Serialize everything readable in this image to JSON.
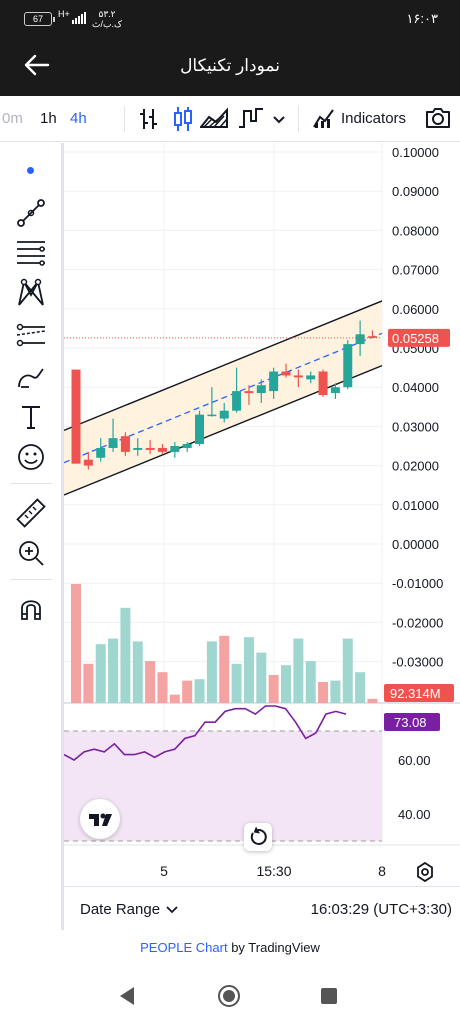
{
  "status": {
    "battery": "67",
    "signal_type": "H+",
    "network_top": "۵۳.۲",
    "network_bottom": "ک.ب/ث",
    "clock": "۱۶:۰۳"
  },
  "header": {
    "title": "نمودار تکنیکال"
  },
  "toolbar": {
    "intervals": [
      "0m",
      "1h",
      "4h"
    ],
    "active_interval": "4h",
    "indicators_label": "Indicators"
  },
  "chart_data": {
    "type": "candlestick",
    "title": "",
    "price_ticks": [
      "0.10000",
      "0.09000",
      "0.08000",
      "0.07000",
      "0.06000",
      "0.05000",
      "0.04000",
      "0.03000",
      "0.02000",
      "0.01000",
      "0.00000",
      "-0.01000",
      "-0.02000",
      "-0.03000"
    ],
    "price_range": [
      -0.035,
      0.1
    ],
    "current_price": "0.05258",
    "volume_label": "92.314M",
    "rsi_label": "73.08",
    "rsi_ticks": [
      "60.00",
      "40.00"
    ],
    "time_ticks": [
      "5",
      "15:30",
      "8"
    ],
    "candles": [
      {
        "o": 0.0445,
        "h": 0.0445,
        "l": 0.0205,
        "c": 0.0205
      },
      {
        "o": 0.0215,
        "h": 0.0235,
        "l": 0.019,
        "c": 0.02
      },
      {
        "o": 0.022,
        "h": 0.027,
        "l": 0.021,
        "c": 0.0245
      },
      {
        "o": 0.0245,
        "h": 0.032,
        "l": 0.0235,
        "c": 0.027
      },
      {
        "o": 0.0275,
        "h": 0.0285,
        "l": 0.0225,
        "c": 0.0235
      },
      {
        "o": 0.024,
        "h": 0.027,
        "l": 0.0225,
        "c": 0.0245
      },
      {
        "o": 0.0245,
        "h": 0.0265,
        "l": 0.023,
        "c": 0.024
      },
      {
        "o": 0.0245,
        "h": 0.0255,
        "l": 0.023,
        "c": 0.0235
      },
      {
        "o": 0.0235,
        "h": 0.026,
        "l": 0.022,
        "c": 0.025
      },
      {
        "o": 0.0245,
        "h": 0.026,
        "l": 0.0235,
        "c": 0.0255
      },
      {
        "o": 0.0255,
        "h": 0.034,
        "l": 0.025,
        "c": 0.033
      },
      {
        "o": 0.033,
        "h": 0.04,
        "l": 0.0325,
        "c": 0.033
      },
      {
        "o": 0.032,
        "h": 0.036,
        "l": 0.031,
        "c": 0.034
      },
      {
        "o": 0.034,
        "h": 0.045,
        "l": 0.0335,
        "c": 0.039
      },
      {
        "o": 0.039,
        "h": 0.0405,
        "l": 0.0355,
        "c": 0.0385
      },
      {
        "o": 0.0385,
        "h": 0.042,
        "l": 0.036,
        "c": 0.0405
      },
      {
        "o": 0.039,
        "h": 0.045,
        "l": 0.037,
        "c": 0.044
      },
      {
        "o": 0.044,
        "h": 0.046,
        "l": 0.0425,
        "c": 0.043
      },
      {
        "o": 0.043,
        "h": 0.0445,
        "l": 0.04,
        "c": 0.0425
      },
      {
        "o": 0.042,
        "h": 0.044,
        "l": 0.041,
        "c": 0.043
      },
      {
        "o": 0.044,
        "h": 0.0445,
        "l": 0.0375,
        "c": 0.038
      },
      {
        "o": 0.0385,
        "h": 0.041,
        "l": 0.037,
        "c": 0.04
      },
      {
        "o": 0.04,
        "h": 0.052,
        "l": 0.0395,
        "c": 0.051
      },
      {
        "o": 0.051,
        "h": 0.057,
        "l": 0.048,
        "c": 0.0535
      },
      {
        "o": 0.053,
        "h": 0.0545,
        "l": 0.0525,
        "c": 0.0526
      }
    ],
    "volume": [
      0.85,
      0.28,
      0.42,
      0.46,
      0.68,
      0.44,
      0.3,
      0.22,
      0.06,
      0.16,
      0.17,
      0.44,
      0.48,
      0.28,
      0.47,
      0.36,
      0.2,
      0.27,
      0.46,
      0.3,
      0.15,
      0.16,
      0.46,
      0.22,
      0.03
    ],
    "volume_up": [
      false,
      false,
      true,
      true,
      true,
      true,
      false,
      false,
      false,
      false,
      true,
      true,
      false,
      true,
      true,
      true,
      false,
      true,
      true,
      true,
      false,
      true,
      true,
      true,
      false
    ],
    "rsi": [
      62,
      60,
      63,
      64,
      63,
      66,
      62,
      62,
      63,
      61,
      63,
      64,
      68,
      69,
      74,
      74,
      78,
      79,
      79,
      77,
      80,
      80,
      79,
      74,
      68,
      70,
      77,
      78,
      77
    ]
  },
  "footer": {
    "date_range": "Date Range",
    "timestamp": "16:03:29 (UTC+3:30)"
  },
  "attribution": {
    "symbol": "PEOPLE Chart",
    "by": " by TradingView"
  },
  "colors": {
    "up": "#26a69a",
    "down": "#ef5350",
    "channel": "#fff3e0",
    "rsi_fill": "#f3e5f5",
    "rsi_line": "#7b1fa2",
    "accent": "#2962ff"
  }
}
